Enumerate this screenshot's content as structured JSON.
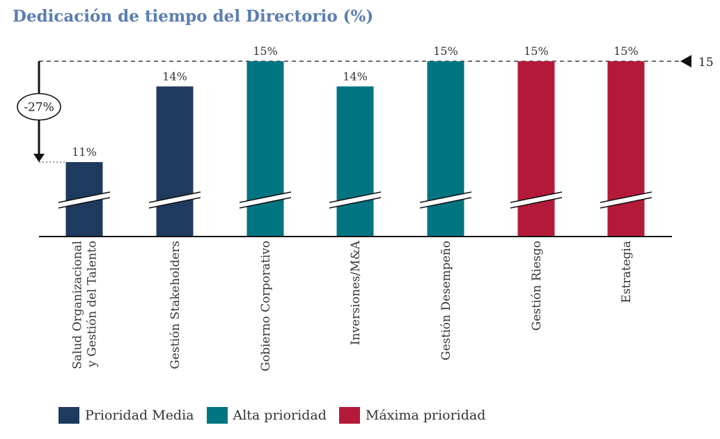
{
  "chart_data": {
    "type": "bar",
    "title": "Dedicación de tiempo del Directorio (%)",
    "categories": [
      [
        "Salud Organizacional",
        "y Gestión del Talento"
      ],
      [
        "Gestión Stakeholders"
      ],
      [
        "Gobierno Corporativo"
      ],
      [
        "Inversiones/M&A"
      ],
      [
        "Gestión Desempeño"
      ],
      [
        "Gestión Riesgo"
      ],
      [
        "Estrategia"
      ]
    ],
    "values": [
      11,
      14,
      15,
      14,
      15,
      15,
      15
    ],
    "value_labels": [
      "11%",
      "14%",
      "15%",
      "14%",
      "15%",
      "15%",
      "15%"
    ],
    "priority": [
      "media",
      "media",
      "alta",
      "alta",
      "alta",
      "maxima",
      "maxima"
    ],
    "axis_break": true,
    "reference_line": {
      "value": 15,
      "label": "15"
    },
    "difference_annotation": {
      "label": "-27%",
      "from": 15,
      "to": 11
    },
    "colors": {
      "media": "#1e3a5f",
      "alta": "#007582",
      "maxima": "#b5193a"
    },
    "legend": [
      {
        "key": "media",
        "label": "Prioridad Media"
      },
      {
        "key": "alta",
        "label": "Alta prioridad"
      },
      {
        "key": "maxima",
        "label": "Máxima prioridad"
      }
    ],
    "legend_position": "bottom-left"
  }
}
